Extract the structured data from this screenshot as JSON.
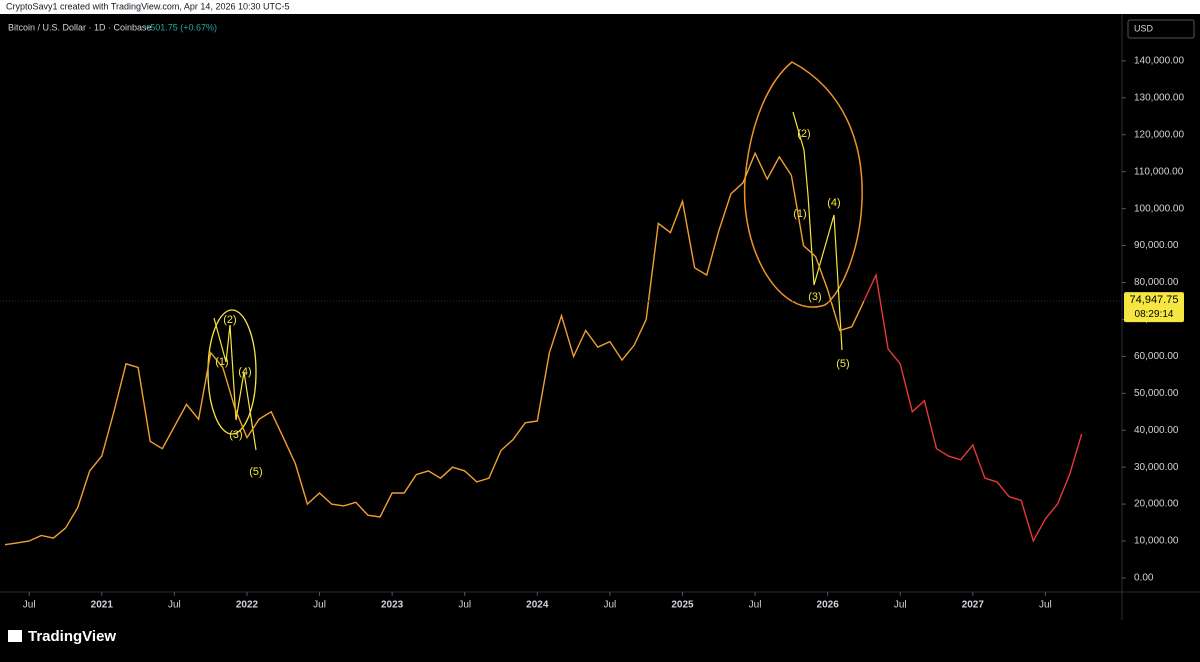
{
  "header": "CryptoSavy1 created with TradingView.com, Apr 14, 2026 10:30 UTC-5",
  "footer_logo": "TradingView",
  "chart_data": {
    "type": "line",
    "title": "Bitcoin / U.S. Dollar · 1D · Coinbase",
    "change": "+501.75 (+0.67%)",
    "currency": "USD",
    "last_price": {
      "value": 74947.75,
      "label": "74,947.75"
    },
    "countdown": "08:29:14",
    "xlim": [
      "2020-05",
      "2028-01"
    ],
    "ylim": [
      -3800,
      152700
    ],
    "xticks": [
      {
        "value": "2020-07",
        "label": "Jul"
      },
      {
        "value": "2021-01",
        "label": "2021"
      },
      {
        "value": "2021-07",
        "label": "Jul"
      },
      {
        "value": "2022-01",
        "label": "2022"
      },
      {
        "value": "2022-07",
        "label": "Jul"
      },
      {
        "value": "2023-01",
        "label": "2023"
      },
      {
        "value": "2023-07",
        "label": "Jul"
      },
      {
        "value": "2024-01",
        "label": "2024"
      },
      {
        "value": "2024-07",
        "label": "Jul"
      },
      {
        "value": "2025-01",
        "label": "2025"
      },
      {
        "value": "2025-07",
        "label": "Jul"
      },
      {
        "value": "2026-01",
        "label": "2026"
      },
      {
        "value": "2026-07",
        "label": "Jul"
      },
      {
        "value": "2027-01",
        "label": "2027"
      },
      {
        "value": "2027-07",
        "label": "Jul"
      }
    ],
    "yticks": [
      {
        "value": 0,
        "label": "0.00"
      },
      {
        "value": 10000,
        "label": "10,000.00"
      },
      {
        "value": 20000,
        "label": "20,000.00"
      },
      {
        "value": 30000,
        "label": "30,000.00"
      },
      {
        "value": 40000,
        "label": "40,000.00"
      },
      {
        "value": 50000,
        "label": "50,000.00"
      },
      {
        "value": 60000,
        "label": "60,000.00"
      },
      {
        "value": 70000,
        "label": "70,000.00"
      },
      {
        "value": 80000,
        "label": "80,000.00"
      },
      {
        "value": 90000,
        "label": "90,000.00"
      },
      {
        "value": 100000,
        "label": "100,000.00"
      },
      {
        "value": 110000,
        "label": "110,000.00"
      },
      {
        "value": 120000,
        "label": "120,000.00"
      },
      {
        "value": 130000,
        "label": "130,000.00"
      },
      {
        "value": 140000,
        "label": "140,000.00"
      }
    ],
    "series": [
      {
        "color": "#f0a030",
        "x": [
          "2020-05",
          "2020-06",
          "2020-07",
          "2020-08",
          "2020-09",
          "2020-10",
          "2020-11",
          "2020-12",
          "2021-01",
          "2021-02",
          "2021-03",
          "2021-04",
          "2021-05",
          "2021-06",
          "2021-07",
          "2021-08",
          "2021-09",
          "2021-10",
          "2021-11",
          "2021-12",
          "2022-01",
          "2022-02",
          "2022-03",
          "2022-04",
          "2022-05",
          "2022-06",
          "2022-07",
          "2022-08",
          "2022-09",
          "2022-10",
          "2022-11",
          "2022-12",
          "2023-01",
          "2023-02",
          "2023-03",
          "2023-04",
          "2023-05",
          "2023-06",
          "2023-07",
          "2023-08",
          "2023-09",
          "2023-10",
          "2023-11",
          "2023-12",
          "2024-01",
          "2024-02",
          "2024-03",
          "2024-04",
          "2024-05",
          "2024-06",
          "2024-07",
          "2024-08",
          "2024-09",
          "2024-10",
          "2024-11",
          "2024-12",
          "2025-01",
          "2025-02",
          "2025-03",
          "2025-04",
          "2025-05",
          "2025-06",
          "2025-07",
          "2025-08",
          "2025-09",
          "2025-10",
          "2025-11",
          "2025-12",
          "2026-01",
          "2026-02",
          "2026-03",
          "2026-04"
        ],
        "values": [
          9000,
          9500,
          10000,
          11500,
          10800,
          13500,
          19000,
          29000,
          33000,
          45000,
          58000,
          57000,
          37000,
          35000,
          41000,
          47000,
          43000,
          61000,
          57000,
          46000,
          38000,
          43000,
          45000,
          38000,
          31000,
          20000,
          23000,
          20000,
          19500,
          20500,
          17000,
          16500,
          23000,
          23000,
          28000,
          29000,
          27000,
          30000,
          29000,
          26000,
          27000,
          34500,
          37500,
          42000,
          42500,
          61000,
          71000,
          60000,
          67000,
          62500,
          64000,
          59000,
          63000,
          70000,
          96000,
          93500,
          102000,
          84000,
          82000,
          94000,
          104000,
          107000,
          115000,
          108000,
          114000,
          109000,
          90000,
          87000,
          78000,
          67000,
          68000,
          74947.75
        ]
      },
      {
        "color": "#e53935",
        "x": [
          "2026-04",
          "2026-05",
          "2026-06",
          "2026-07",
          "2026-08",
          "2026-09",
          "2026-10",
          "2026-11",
          "2026-12",
          "2027-01",
          "2027-02",
          "2027-03",
          "2027-04",
          "2027-05",
          "2027-06",
          "2027-07",
          "2027-08",
          "2027-09",
          "2027-10"
        ],
        "values": [
          75000,
          82000,
          62000,
          58000,
          45000,
          48000,
          35000,
          33000,
          32000,
          36000,
          27000,
          26000,
          22000,
          21000,
          10000,
          16000,
          20000,
          28000,
          39000
        ]
      }
    ],
    "annotations": [
      "(1)",
      "(2)",
      "(3)",
      "(4)",
      "(5)",
      "(1)",
      "(2)",
      "(3)",
      "(4)",
      "(5)"
    ]
  }
}
